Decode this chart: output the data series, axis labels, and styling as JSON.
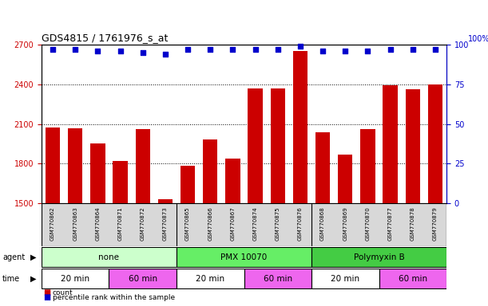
{
  "title": "GDS4815 / 1761976_s_at",
  "samples": [
    "GSM770862",
    "GSM770863",
    "GSM770864",
    "GSM770871",
    "GSM770872",
    "GSM770873",
    "GSM770865",
    "GSM770866",
    "GSM770867",
    "GSM770874",
    "GSM770875",
    "GSM770876",
    "GSM770868",
    "GSM770869",
    "GSM770870",
    "GSM770877",
    "GSM770878",
    "GSM770879"
  ],
  "counts": [
    2075,
    2065,
    1950,
    1820,
    2060,
    1530,
    1785,
    1980,
    1840,
    2370,
    2370,
    2650,
    2040,
    1870,
    2060,
    2390,
    2360,
    2400
  ],
  "percentile": [
    97,
    97,
    96,
    96,
    95,
    94,
    97,
    97,
    97,
    97,
    97,
    99,
    96,
    96,
    96,
    97,
    97,
    97
  ],
  "ylim_left": [
    1500,
    2700
  ],
  "ylim_right": [
    0,
    100
  ],
  "yticks_left": [
    1500,
    1800,
    2100,
    2400,
    2700
  ],
  "yticks_right": [
    0,
    25,
    50,
    75,
    100
  ],
  "bar_color": "#cc0000",
  "dot_color": "#0000cc",
  "agent_groups": [
    {
      "label": "none",
      "start": 0,
      "end": 6,
      "color": "#ccffcc"
    },
    {
      "label": "PMX 10070",
      "start": 6,
      "end": 12,
      "color": "#66ee66"
    },
    {
      "label": "Polymyxin B",
      "start": 12,
      "end": 18,
      "color": "#44cc44"
    }
  ],
  "time_groups": [
    {
      "label": "20 min",
      "start": 0,
      "end": 3,
      "color": "#ffffff"
    },
    {
      "label": "60 min",
      "start": 3,
      "end": 6,
      "color": "#ee66ee"
    },
    {
      "label": "20 min",
      "start": 6,
      "end": 9,
      "color": "#ffffff"
    },
    {
      "label": "60 min",
      "start": 9,
      "end": 12,
      "color": "#ee66ee"
    },
    {
      "label": "20 min",
      "start": 12,
      "end": 15,
      "color": "#ffffff"
    },
    {
      "label": "60 min",
      "start": 15,
      "end": 18,
      "color": "#ee66ee"
    }
  ],
  "legend_count_color": "#cc0000",
  "legend_pct_color": "#0000cc",
  "tick_color_left": "#cc0000",
  "tick_color_right": "#0000cc"
}
